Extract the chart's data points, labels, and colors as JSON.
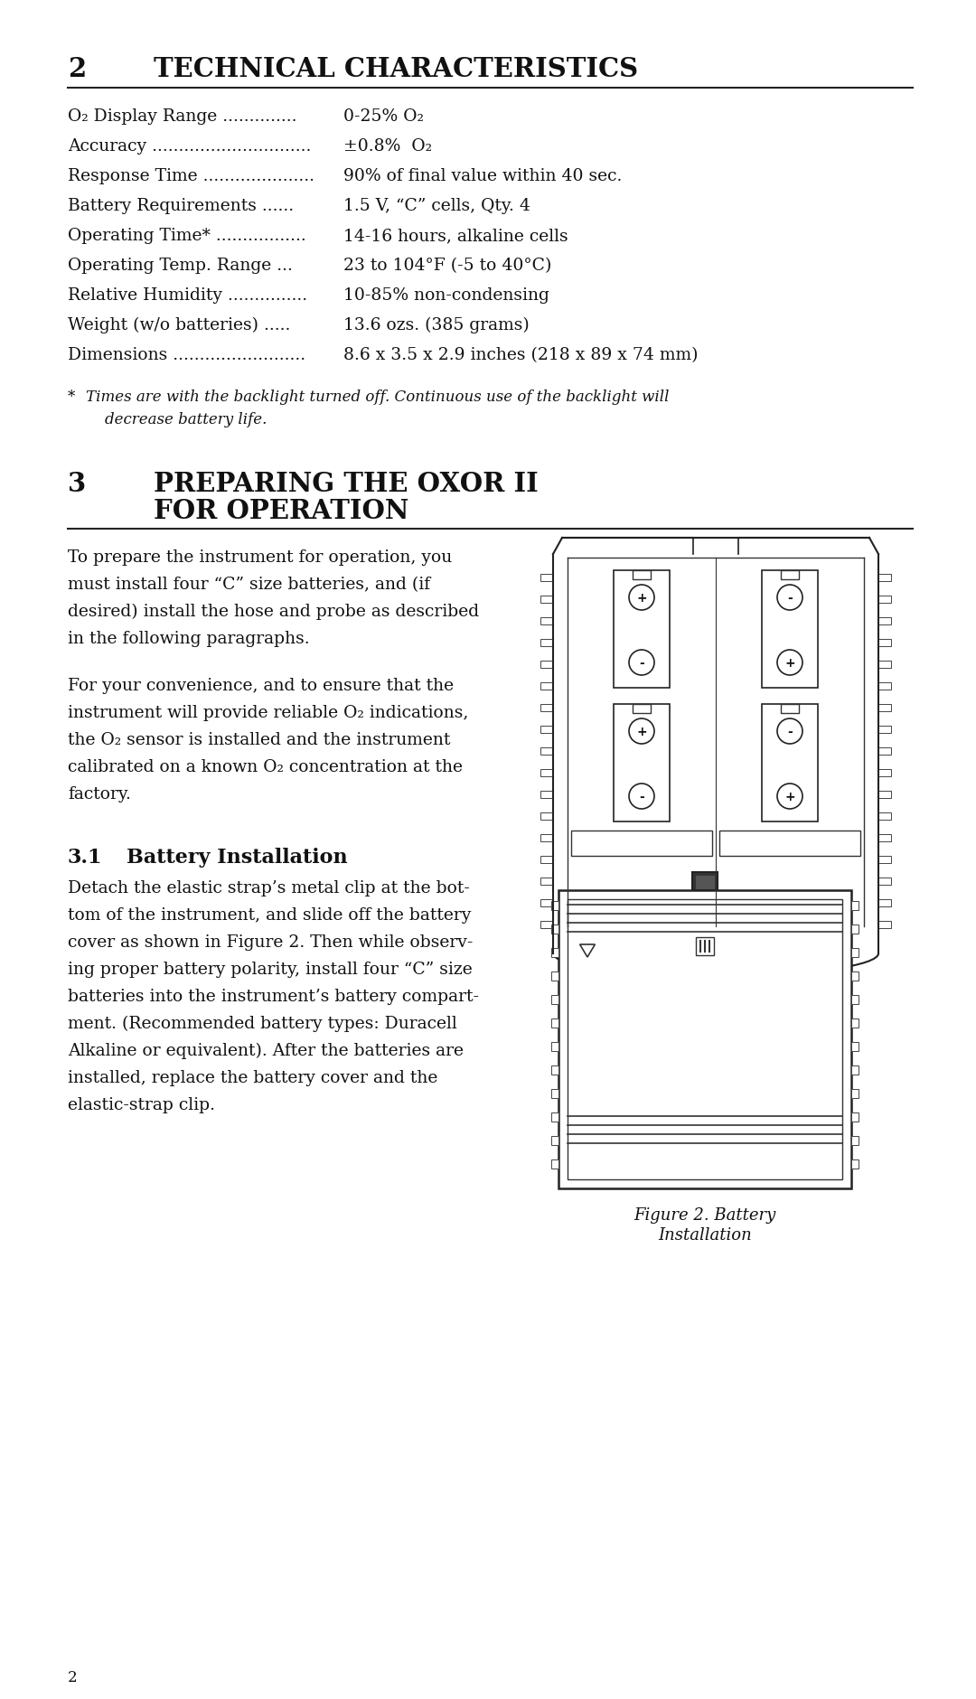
{
  "bg_color": "#ffffff",
  "text_color": "#1a1a1a",
  "page_num": "2",
  "section2_heading_num": "2",
  "section2_heading_text": "TECHNICAL CHARACTERISTICS",
  "spec_labels": [
    "O₂ Display Range ..............",
    "Accuracy ..............................",
    "Response Time .....................",
    "Battery Requirements ......",
    "Operating Time* .................",
    "Operating Temp. Range ...",
    "Relative Humidity ...............",
    "Weight (w/o batteries) .....",
    "Dimensions ........................."
  ],
  "spec_values": [
    "0-25% O₂",
    "±0.8%  O₂",
    "90% of final value within 40 sec.",
    "1.5 V, “C” cells, Qty. 4",
    "14-16 hours, alkaline cells",
    "23 to 104°F (-5 to 40°C)",
    "10-85% non-condensing",
    "13.6 ozs. (385 grams)",
    "8.6 x 3.5 x 2.9 inches (218 x 89 x 74 mm)"
  ],
  "footnote_star": "*",
  "footnote_text": "Times are with the backlight turned off. Continuous use of the backlight will\n    decrease battery life.",
  "section3_num": "3",
  "section3_text_line1": "PREPARING THE OXOR II",
  "section3_text_line2": "FOR OPERATION",
  "para1_lines": [
    "To prepare the instrument for operation, you",
    "must install four “C” size batteries, and (if",
    "desired) install the hose and probe as described",
    "in the following paragraphs."
  ],
  "para2_lines": [
    "For your convenience, and to ensure that the",
    "instrument will provide reliable O₂ indications,",
    "the O₂ sensor is installed and the instrument",
    "calibrated on a known O₂ concentration at the",
    "factory."
  ],
  "section31_num": "3.1",
  "section31_text": "Battery Installation",
  "para3_lines": [
    "Detach the elastic strap’s metal clip at the bot-",
    "tom of the instrument, and slide off the battery",
    "cover as shown in Figure 2. Then while observ-",
    "ing proper battery polarity, install four “C” size",
    "batteries into the instrument’s battery compart-",
    "ment. (Recommended battery types: Duracell",
    "Alkaline or equivalent). After the batteries are",
    "installed, replace the battery cover and the",
    "elastic-strap clip."
  ],
  "fig_caption_line1": "Figure 2. Battery",
  "fig_caption_line2": "Installation"
}
